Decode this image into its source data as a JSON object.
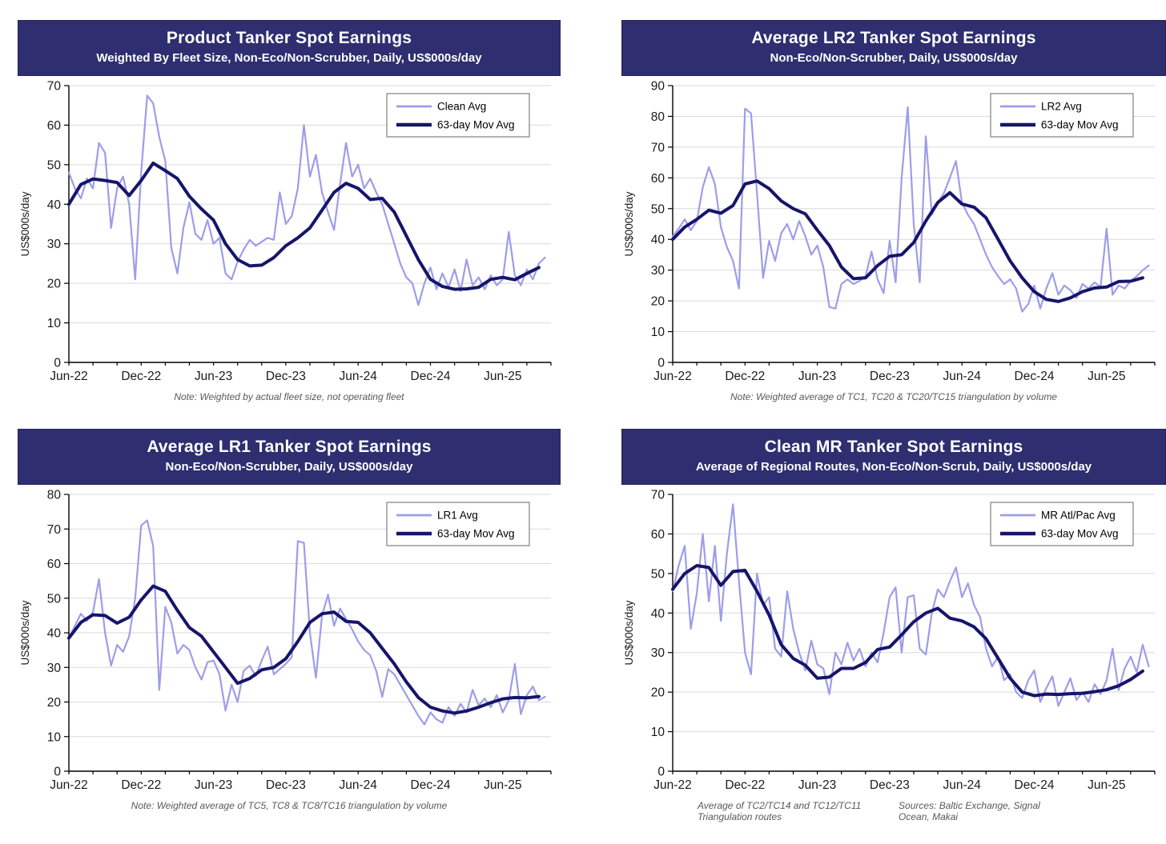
{
  "colors": {
    "title_bar": "#2e2e70",
    "title_text": "#ffffff",
    "daily_line": "#9d9dea",
    "mov_avg_line": "#15156b",
    "grid": "#d9d9d9",
    "axis": "#000000",
    "tick_text": "#1a1a1a",
    "note_text": "#595959",
    "legend_border": "#7f7f7f"
  },
  "x_axis": {
    "tick_labels": [
      "Jun-22",
      "Dec-22",
      "Jun-23",
      "Dec-23",
      "Jun-24",
      "Dec-24",
      "Jun-25"
    ],
    "label_months": [
      0,
      6,
      12,
      18,
      24,
      30,
      36
    ],
    "minor_tick_every_months": 2,
    "xmax_months": 40
  },
  "chart_data": [
    {
      "type": "line",
      "title": "Product Tanker Spot Earnings",
      "subtitle": "Weighted By Fleet Size, Non-Eco/Non-Scrubber, Daily, US$000s/day",
      "ylabel": "US$000s/day",
      "ylim": [
        0,
        70
      ],
      "ytick_step": 10,
      "x_unit": "months since Jun-2022",
      "note": "Note: Weighted by actual fleet size, not operating fleet",
      "legend": [
        "Clean Avg",
        "63-day Mov Avg"
      ],
      "legend_position": "top-right",
      "series": [
        {
          "name": "Clean Avg",
          "role": "daily",
          "x0": 0,
          "dx": 0.5,
          "y": [
            48,
            44,
            41.5,
            46.5,
            44,
            55.5,
            53,
            34,
            44,
            47,
            40,
            21,
            48,
            67.5,
            65.5,
            57,
            51,
            29,
            22.5,
            34,
            40.5,
            32.5,
            31,
            36,
            30,
            31.5,
            22.5,
            21,
            25.5,
            28.5,
            31,
            29.5,
            30.5,
            31.5,
            31,
            43,
            35,
            37,
            44,
            60,
            47,
            52.5,
            43,
            38,
            33.5,
            45,
            55.5,
            47,
            50,
            44,
            46.5,
            43,
            40,
            35,
            30,
            25,
            21.5,
            20,
            14.5,
            20,
            24,
            18.5,
            22.5,
            19,
            23.5,
            18,
            26,
            19.5,
            21.5,
            18.5,
            22,
            19.5,
            21,
            33,
            22,
            19.5,
            23.5,
            21,
            25,
            26.5
          ]
        },
        {
          "name": "63-day Mov Avg",
          "role": "mov",
          "x0": 0,
          "dx": 1,
          "y": [
            40,
            45,
            46.4,
            46,
            45.5,
            42.2,
            46,
            50.4,
            48.5,
            46.5,
            42,
            38.8,
            36,
            30,
            26,
            24.4,
            24.6,
            26.5,
            29.5,
            31.5,
            34,
            38.5,
            43,
            45.3,
            44,
            41.2,
            41.5,
            38,
            32,
            26,
            21,
            19.2,
            18.5,
            18.6,
            19,
            21,
            21.5,
            20.9,
            22.5,
            24
          ]
        }
      ]
    },
    {
      "type": "line",
      "title": "Average LR2 Tanker Spot Earnings",
      "subtitle": "Non-Eco/Non-Scrubber, Daily, US$000s/day",
      "ylabel": "US$000s/day",
      "ylim": [
        0,
        90
      ],
      "ytick_step": 10,
      "x_unit": "months since Jun-2022",
      "note": "Note: Weighted average of TC1, TC20 & TC20/TC15 triangulation by volume",
      "legend": [
        "LR2 Avg",
        "63-day Mov Avg"
      ],
      "legend_position": "top-right",
      "series": [
        {
          "name": "LR2 Avg",
          "role": "daily",
          "x0": 0,
          "dx": 0.5,
          "y": [
            41,
            43.5,
            46.5,
            43,
            46,
            57,
            63.5,
            58,
            44,
            37.5,
            33,
            24,
            82.5,
            81,
            55,
            27.5,
            39.5,
            33,
            42,
            45,
            40,
            46,
            41,
            35,
            38,
            31,
            18,
            17.5,
            25.5,
            27,
            25.5,
            26.5,
            28,
            36,
            27,
            22.5,
            39.5,
            26,
            60,
            83,
            45,
            26,
            73.5,
            48,
            52,
            55,
            60,
            65.5,
            52,
            48,
            45,
            40,
            35,
            31,
            28,
            25.5,
            27,
            24,
            16.5,
            19,
            25,
            17.5,
            24,
            29,
            22,
            25,
            23.5,
            21,
            25.5,
            24,
            26,
            24.5,
            43.5,
            22,
            25,
            24,
            26.5,
            28,
            30,
            31.5
          ]
        },
        {
          "name": "63-day Mov Avg",
          "role": "mov",
          "x0": 0,
          "dx": 1,
          "y": [
            40,
            44,
            46.5,
            49.5,
            48.5,
            51,
            58,
            59,
            56.5,
            52.5,
            50,
            48.3,
            43,
            38,
            31,
            27.2,
            27.5,
            31.5,
            34.5,
            35,
            39,
            46,
            52,
            55.2,
            51.5,
            50.5,
            47,
            40,
            33,
            27.5,
            23,
            20.5,
            19.8,
            21,
            23,
            24.2,
            24.5,
            26.3,
            26.4,
            27.5
          ]
        }
      ]
    },
    {
      "type": "line",
      "title": "Average LR1 Tanker Spot Earnings",
      "subtitle": "Non-Eco/Non-Scrubber, Daily, US$000s/day",
      "ylabel": "US$000s/day",
      "ylim": [
        0,
        80
      ],
      "ytick_step": 10,
      "x_unit": "months since Jun-2022",
      "note": "Note: Weighted average of TC5, TC8 & TC8/TC16 triangulation by volume",
      "legend": [
        "LR1 Avg",
        "63-day Mov Avg"
      ],
      "legend_position": "top-right",
      "series": [
        {
          "name": "LR1 Avg",
          "role": "daily",
          "x0": 0,
          "dx": 0.5,
          "y": [
            38.5,
            42,
            45.5,
            43.5,
            46,
            55.5,
            40,
            30.5,
            36.5,
            34.5,
            39,
            50,
            71,
            72.5,
            65,
            23.5,
            47.5,
            43,
            34,
            36.5,
            35,
            30,
            26.5,
            31.5,
            32,
            28,
            17.5,
            25,
            20,
            29,
            30.5,
            27.5,
            32,
            36,
            28,
            29.5,
            31,
            33,
            66.5,
            66,
            40,
            27,
            45,
            51,
            42,
            47,
            44,
            41,
            37.5,
            35,
            33.5,
            29,
            21.5,
            29.5,
            28,
            25,
            22,
            19,
            16,
            13.5,
            17,
            15,
            14,
            18.5,
            16,
            19.5,
            17,
            23.5,
            19,
            21,
            18.5,
            22,
            17,
            20.5,
            31,
            16.5,
            22,
            24.5,
            20.5,
            21.5
          ]
        },
        {
          "name": "63-day Mov Avg",
          "role": "mov",
          "x0": 0,
          "dx": 1,
          "y": [
            38.5,
            43,
            45.2,
            45,
            42.8,
            44.5,
            49.5,
            53.5,
            52,
            46.5,
            41.5,
            39,
            34.5,
            30,
            25.4,
            26.8,
            29.3,
            30,
            32.5,
            37.5,
            43,
            45.5,
            46,
            43.3,
            43,
            40,
            35.5,
            31,
            25.8,
            21.3,
            18.5,
            17.4,
            16.8,
            17.4,
            18.5,
            19.8,
            20.9,
            21.3,
            21.2,
            21.6
          ]
        }
      ]
    },
    {
      "type": "line",
      "title": "Clean MR Tanker Spot Earnings",
      "subtitle": "Average of Regional Routes, Non-Eco/Non-Scrub, Daily, US$000s/day",
      "ylabel": "US$000s/day",
      "ylim": [
        0,
        70
      ],
      "ytick_step": 10,
      "x_unit": "months since Jun-2022",
      "note": "Average of TC2/TC14 and TC12/TC11 Triangulation routes",
      "source": "Sources: Baltic Exchange, Signal Ocean, Makai",
      "legend": [
        "MR Atl/Pac Avg",
        "63-day Mov Avg"
      ],
      "legend_position": "top-right",
      "series": [
        {
          "name": "MR Atl/Pac Avg",
          "role": "daily",
          "x0": 0,
          "dx": 0.5,
          "y": [
            45.5,
            52,
            57,
            36,
            45,
            60,
            43,
            57,
            38,
            55,
            67.5,
            48,
            30,
            24.5,
            50,
            42,
            44,
            31,
            29,
            45.5,
            36,
            30,
            25.5,
            33,
            27,
            26,
            19.5,
            30,
            27,
            32.5,
            28,
            31,
            26.5,
            30,
            27.5,
            35,
            44,
            46.5,
            30,
            44,
            44.5,
            31,
            29.5,
            40,
            46,
            44,
            48,
            51.5,
            44,
            47.5,
            42,
            39,
            31,
            26.5,
            29,
            23,
            24.5,
            20,
            18.5,
            23,
            25.5,
            17.5,
            21,
            24,
            16.5,
            20,
            23.5,
            18,
            20,
            17.5,
            22,
            19.5,
            23,
            31,
            20.5,
            26,
            29,
            25,
            32,
            26.5
          ]
        },
        {
          "name": "63-day Mov Avg",
          "role": "mov",
          "x0": 0,
          "dx": 1,
          "y": [
            46,
            50,
            52,
            51.5,
            47,
            50.5,
            50.8,
            45.5,
            39.5,
            32,
            28.5,
            26.8,
            23.5,
            23.8,
            26,
            26,
            27.5,
            30.8,
            31.4,
            34.5,
            37.8,
            40,
            41.2,
            38.7,
            38,
            36.5,
            33.5,
            28.5,
            23.5,
            20,
            19.1,
            19.5,
            19.4,
            19.6,
            19.7,
            20.1,
            20.6,
            21.6,
            23.2,
            25.3
          ]
        }
      ]
    }
  ]
}
